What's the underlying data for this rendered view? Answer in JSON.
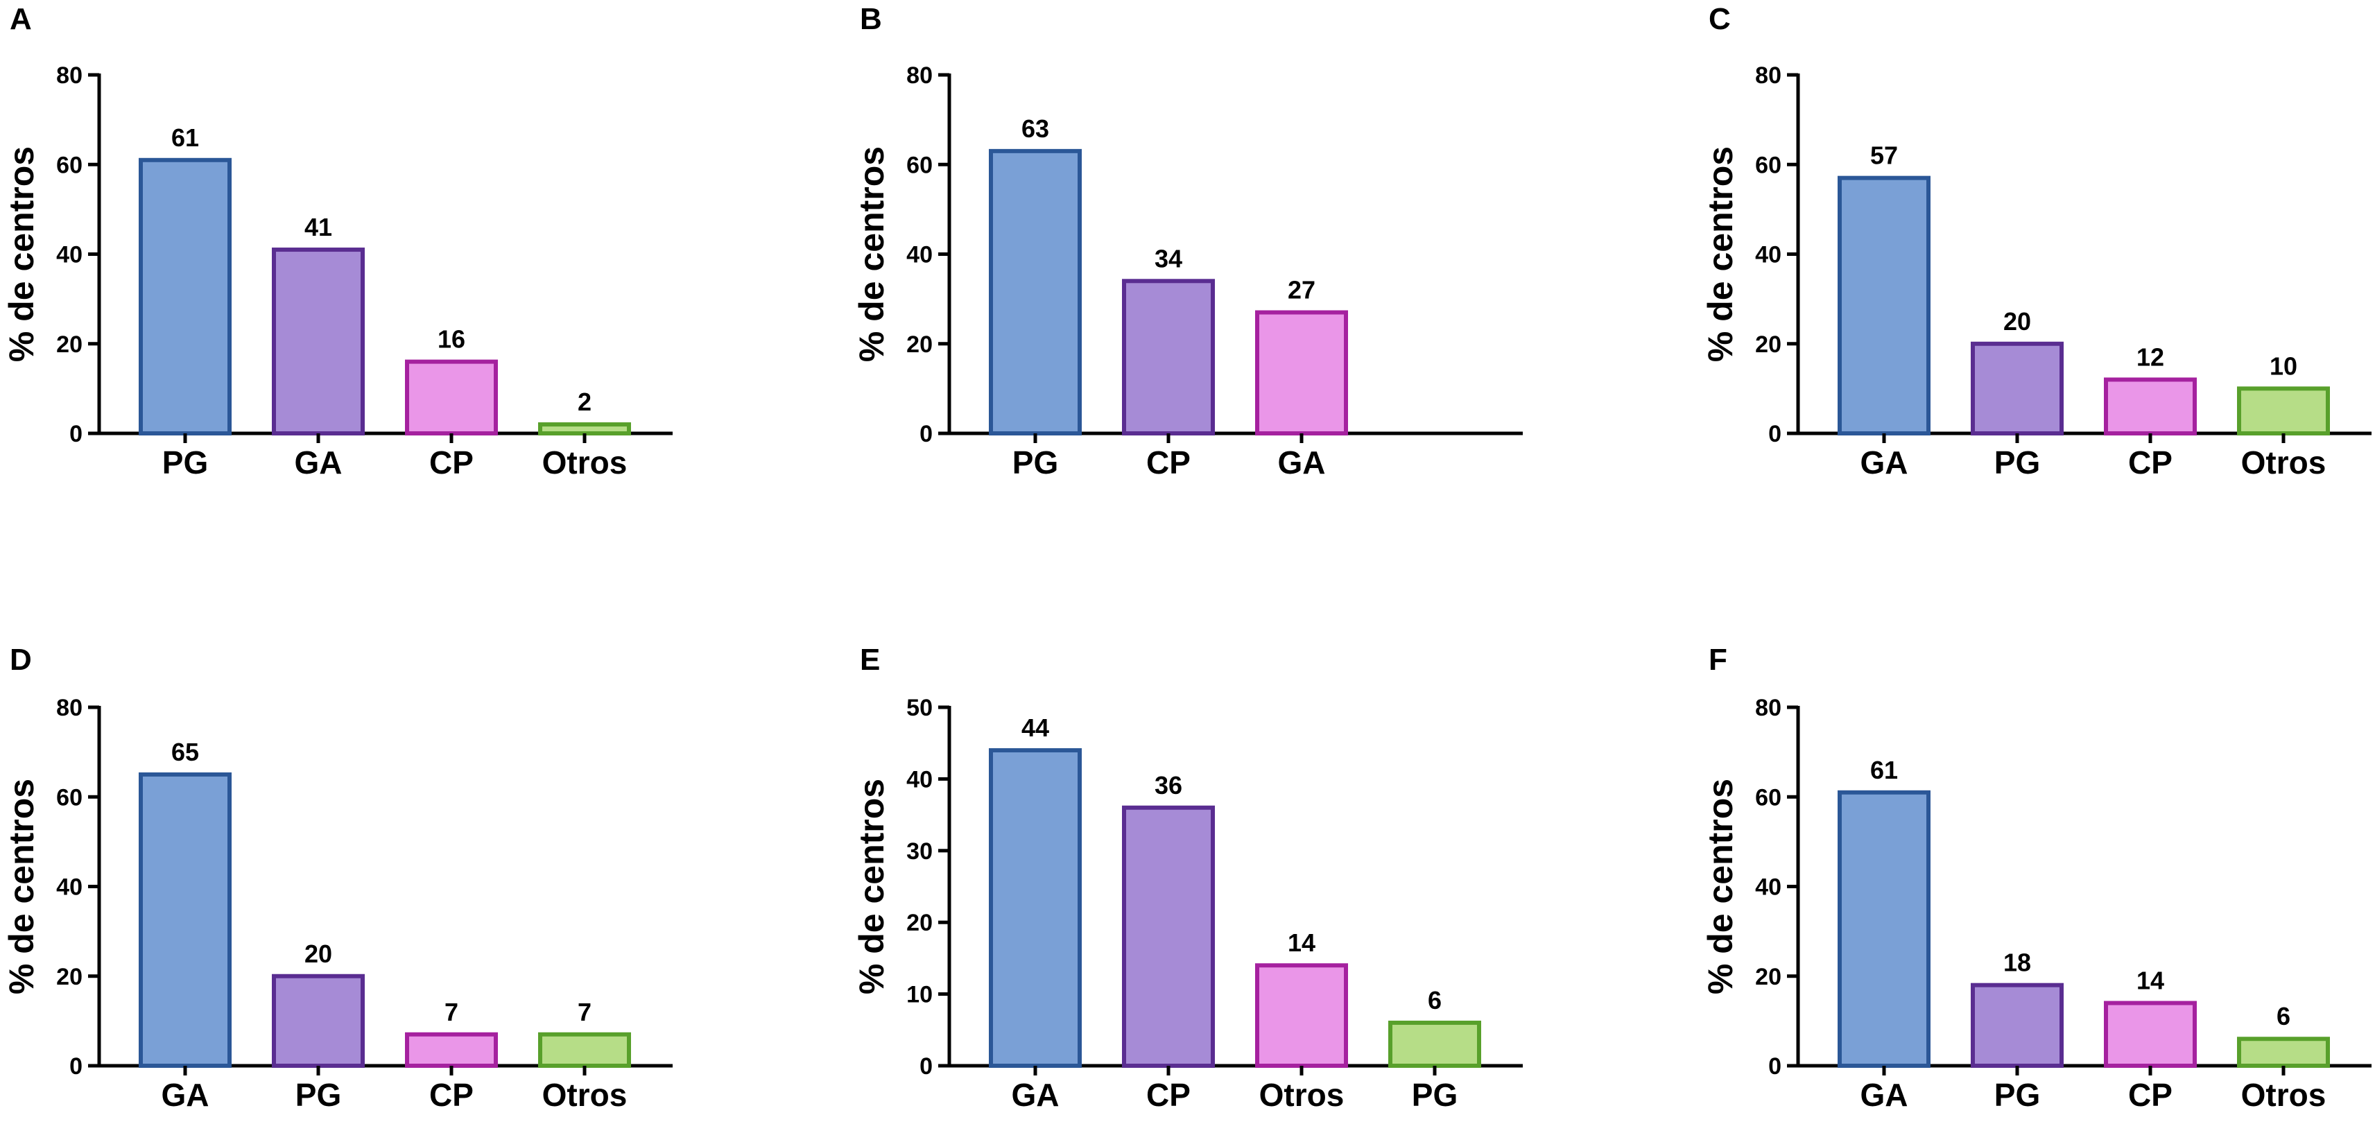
{
  "figure": {
    "background": "#ffffff",
    "axis_color": "#000000"
  },
  "colors": {
    "blue": {
      "fill": "#7aa0d6",
      "stroke": "#2b5797"
    },
    "purple": {
      "fill": "#a68bd6",
      "stroke": "#5a2d91"
    },
    "pink": {
      "fill": "#ea96e8",
      "stroke": "#a5219f"
    },
    "green": {
      "fill": "#b6dd87",
      "stroke": "#58a02b"
    }
  },
  "chart_data": [
    {
      "panel": "A",
      "type": "bar",
      "categories": [
        "PG",
        "GA",
        "CP",
        "Otros"
      ],
      "values": [
        61,
        41,
        16,
        2
      ],
      "data_labels": [
        "61",
        "41",
        "16",
        "2"
      ],
      "bar_colors": [
        "blue",
        "purple",
        "pink",
        "green"
      ],
      "ylabel": "% de centros",
      "xlabel": "",
      "ylim": [
        0,
        80
      ],
      "yticks": [
        0,
        20,
        40,
        60,
        80
      ],
      "grid": false,
      "legend": "none"
    },
    {
      "panel": "B",
      "type": "bar",
      "categories": [
        "PG",
        "CP",
        "GA"
      ],
      "values": [
        63,
        34,
        27
      ],
      "data_labels": [
        "63",
        "34",
        "27"
      ],
      "bar_colors": [
        "blue",
        "purple",
        "pink"
      ],
      "ylabel": "% de centros",
      "xlabel": "",
      "ylim": [
        0,
        80
      ],
      "yticks": [
        0,
        20,
        40,
        60,
        80
      ],
      "grid": false,
      "legend": "none"
    },
    {
      "panel": "C",
      "type": "bar",
      "categories": [
        "GA",
        "PG",
        "CP",
        "Otros"
      ],
      "values": [
        57,
        20,
        12,
        10
      ],
      "data_labels": [
        "57",
        "20",
        "12",
        "10"
      ],
      "bar_colors": [
        "blue",
        "purple",
        "pink",
        "green"
      ],
      "ylabel": "% de centros",
      "xlabel": "",
      "ylim": [
        0,
        80
      ],
      "yticks": [
        0,
        20,
        40,
        60,
        80
      ],
      "grid": false,
      "legend": "none"
    },
    {
      "panel": "D",
      "type": "bar",
      "categories": [
        "GA",
        "PG",
        "CP",
        "Otros"
      ],
      "values": [
        65,
        20,
        7,
        7
      ],
      "data_labels": [
        "65",
        "20",
        "7",
        "7"
      ],
      "bar_colors": [
        "blue",
        "purple",
        "pink",
        "green"
      ],
      "ylabel": "% de centros",
      "xlabel": "",
      "ylim": [
        0,
        80
      ],
      "yticks": [
        0,
        20,
        40,
        60,
        80
      ],
      "grid": false,
      "legend": "none"
    },
    {
      "panel": "E",
      "type": "bar",
      "categories": [
        "GA",
        "CP",
        "Otros",
        "PG"
      ],
      "values": [
        44,
        36,
        14,
        6
      ],
      "data_labels": [
        "44",
        "36",
        "14",
        "6"
      ],
      "bar_colors": [
        "blue",
        "purple",
        "pink",
        "green"
      ],
      "ylabel": "% de centros",
      "xlabel": "",
      "ylim": [
        0,
        50
      ],
      "yticks": [
        0,
        10,
        20,
        30,
        40,
        50
      ],
      "grid": false,
      "legend": "none"
    },
    {
      "panel": "F",
      "type": "bar",
      "categories": [
        "GA",
        "PG",
        "CP",
        "Otros"
      ],
      "values": [
        61,
        18,
        14,
        6
      ],
      "data_labels": [
        "61",
        "18",
        "14",
        "6"
      ],
      "bar_colors": [
        "blue",
        "purple",
        "pink",
        "green"
      ],
      "ylabel": "% de centros",
      "xlabel": "",
      "ylim": [
        0,
        80
      ],
      "yticks": [
        0,
        20,
        40,
        60,
        80
      ],
      "grid": false,
      "legend": "none"
    }
  ]
}
